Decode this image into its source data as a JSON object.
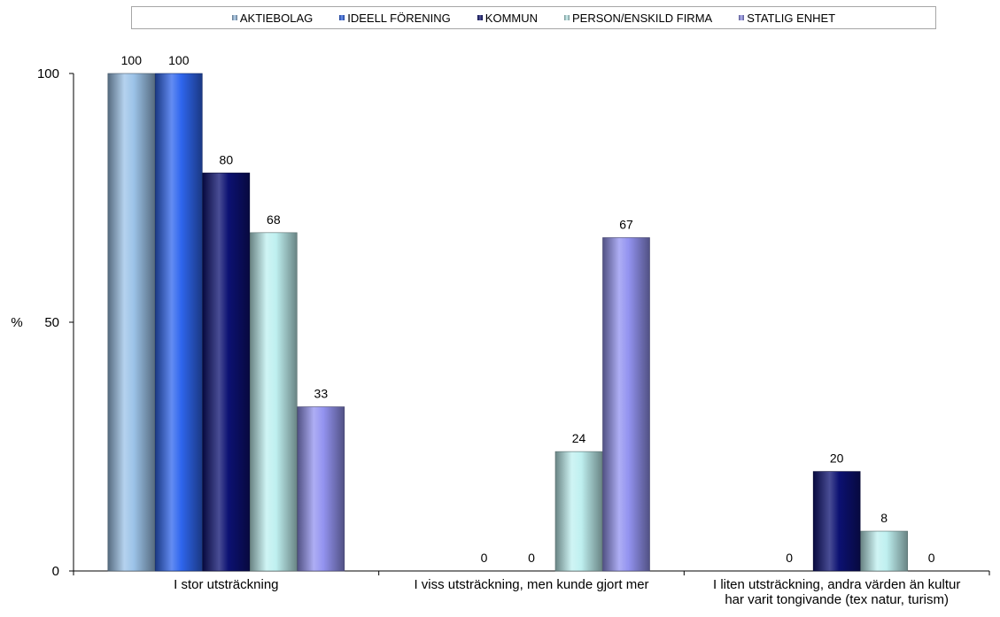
{
  "chart_data": {
    "type": "bar",
    "categories": [
      [
        "I stor utsträckning"
      ],
      [
        "I viss utsträckning, men kunde gjort mer"
      ],
      [
        "I liten utsträckning, andra värden än kultur",
        "har varit tongivande (tex natur, turism)"
      ]
    ],
    "series": [
      {
        "name": "AKTIEBOLAG",
        "color": "#9cc3e8",
        "values": [
          100,
          0,
          0
        ],
        "labels": [
          "100",
          "",
          ""
        ]
      },
      {
        "name": "IDEELL FÖRENING",
        "color": "#2f66ee",
        "values": [
          100,
          0,
          0
        ],
        "labels": [
          "100",
          "0",
          "0"
        ]
      },
      {
        "name": "KOMMUN",
        "color": "#0c1172",
        "values": [
          80,
          0,
          20
        ],
        "labels": [
          "80",
          "0",
          "20"
        ]
      },
      {
        "name": "PERSON/ENSKILD FIRMA",
        "color": "#bff0f0",
        "values": [
          68,
          24,
          8
        ],
        "labels": [
          "68",
          "24",
          "8"
        ]
      },
      {
        "name": "STATLIG ENHET",
        "color": "#9393f0",
        "values": [
          33,
          67,
          0
        ],
        "labels": [
          "33",
          "67",
          "0"
        ]
      }
    ],
    "ylabel": "%",
    "ylim": [
      0,
      100
    ],
    "yticks": [
      "0",
      "50",
      "100"
    ],
    "grid": false,
    "legend": "top"
  }
}
